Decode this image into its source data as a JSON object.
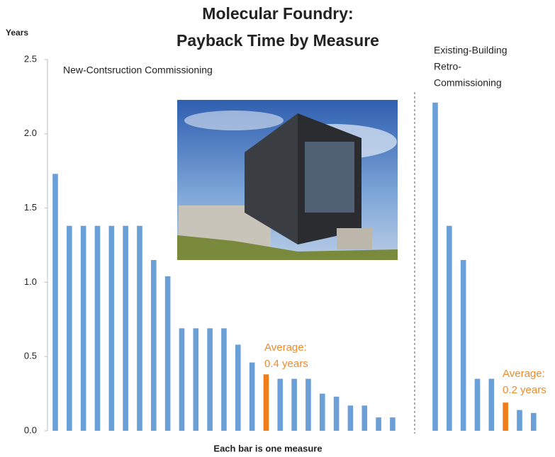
{
  "chart_data": {
    "type": "bar",
    "title": [
      "Molecular Foundry:",
      "Payback Time by Measure"
    ],
    "ylabel": "Years",
    "xlabel": "Each bar is one measure",
    "ylim": [
      0,
      2.5
    ],
    "yticks": [
      {
        "value": 0,
        "label": "0.0"
      },
      0.5,
      {
        "value": 1,
        "label": "1.0"
      },
      1.5,
      {
        "value": 2,
        "label": "2.0"
      },
      2.5
    ],
    "series": [
      {
        "name": [
          "New-Contsruction Commissioning"
        ],
        "values": [
          1.73,
          1.38,
          1.38,
          1.38,
          1.38,
          1.38,
          1.38,
          1.15,
          1.04,
          0.69,
          0.69,
          0.69,
          0.69,
          0.58,
          0.46,
          0.38,
          0.35,
          0.35,
          0.35,
          0.25,
          0.23,
          0.17,
          0.17,
          0.09,
          0.09
        ],
        "colors": [
          "#6a9fd8",
          "#6a9fd8",
          "#6a9fd8",
          "#6a9fd8",
          "#6a9fd8",
          "#6a9fd8",
          "#6a9fd8",
          "#6a9fd8",
          "#6a9fd8",
          "#6a9fd8",
          "#6a9fd8",
          "#6a9fd8",
          "#6a9fd8",
          "#6a9fd8",
          "#6a9fd8",
          "#ef7d1a",
          "#6a9fd8",
          "#6a9fd8",
          "#6a9fd8",
          "#6a9fd8",
          "#6a9fd8",
          "#6a9fd8",
          "#6a9fd8",
          "#6a9fd8",
          "#6a9fd8"
        ],
        "annotation": [
          "Average:",
          "0.4 years"
        ]
      },
      {
        "name": [
          "Existing-Building",
          "Retro-",
          "Commissioning"
        ],
        "values": [
          2.21,
          1.38,
          1.15,
          0.35,
          0.35,
          0.19,
          0.14,
          0.12
        ],
        "colors": [
          "#6a9fd8",
          "#6a9fd8",
          "#6a9fd8",
          "#6a9fd8",
          "#6a9fd8",
          "#ef7d1a",
          "#6a9fd8",
          "#6a9fd8"
        ],
        "annotation": [
          "Average:",
          "0.2 years"
        ]
      }
    ]
  }
}
